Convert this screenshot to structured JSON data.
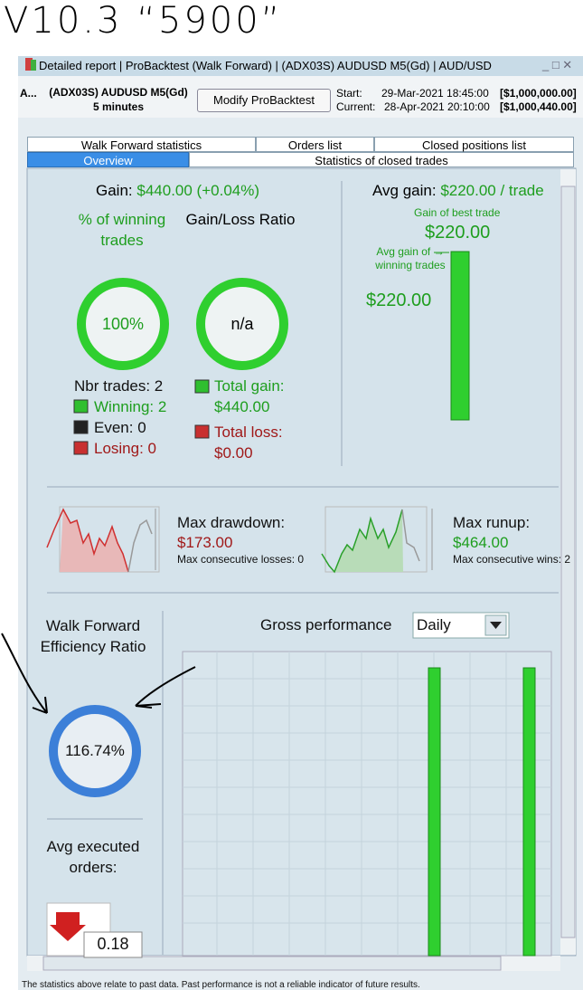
{
  "annotation": {
    "version": "V10.3",
    "note": "“5900”"
  },
  "window": {
    "title": "Detailed report | ProBacktest (Walk Forward) | (ADX03S) AUDUSD M5(Gd) | AUD/USD"
  },
  "header": {
    "truncated": "A...",
    "instrument": "(ADX03S) AUDUSD M5(Gd)",
    "timeframe": "5 minutes",
    "button": "Modify ProBacktest",
    "start_label": "Start:",
    "start_date": "29-Mar-2021 18:45:00",
    "start_capital": "[$1,000,000.00]",
    "current_label": "Current:",
    "current_date": "28-Apr-2021 20:10:00",
    "current_capital": "[$1,000,440.00]"
  },
  "tabs": [
    "Walk Forward statistics",
    "Orders list",
    "Closed positions list",
    "Overview",
    "Statistics of closed trades"
  ],
  "gain": {
    "label": "Gain:",
    "value": "$440.00 (+0.04%)"
  },
  "winning": {
    "label": "% of winning trades",
    "value": "100%"
  },
  "ratio": {
    "label": "Gain/Loss Ratio",
    "value": "n/a"
  },
  "trades": {
    "count": "Nbr trades: 2",
    "winning": "Winning: 2",
    "even": "Even: 0",
    "losing": "Losing: 0"
  },
  "totals": {
    "gain_label": "Total gain:",
    "gain_value": "$440.00",
    "loss_label": "Total loss:",
    "loss_value": "$0.00"
  },
  "avg_gain": {
    "label": "Avg gain:",
    "value": "$220.00 / trade",
    "best_label": "Gain of best trade",
    "best_value": "$220.00",
    "winning_label": "Avg gain of → winning trades",
    "winning_value": "$220.00"
  },
  "drawdown": {
    "label": "Max drawdown:",
    "value": "$173.00",
    "consecutive": "Max consecutive losses: 0"
  },
  "runup": {
    "label": "Max runup:",
    "value": "$464.00",
    "consecutive": "Max consecutive wins: 2"
  },
  "efficiency": {
    "label": "Walk Forward Efficiency Ratio",
    "value": "116.74%"
  },
  "orders": {
    "label": "Avg executed orders:",
    "value": "0.18"
  },
  "performance": {
    "label": "Gross performance",
    "period": "Daily"
  },
  "footer": "The statistics above relate to past data. Past performance is not a reliable indicator of future results."
}
